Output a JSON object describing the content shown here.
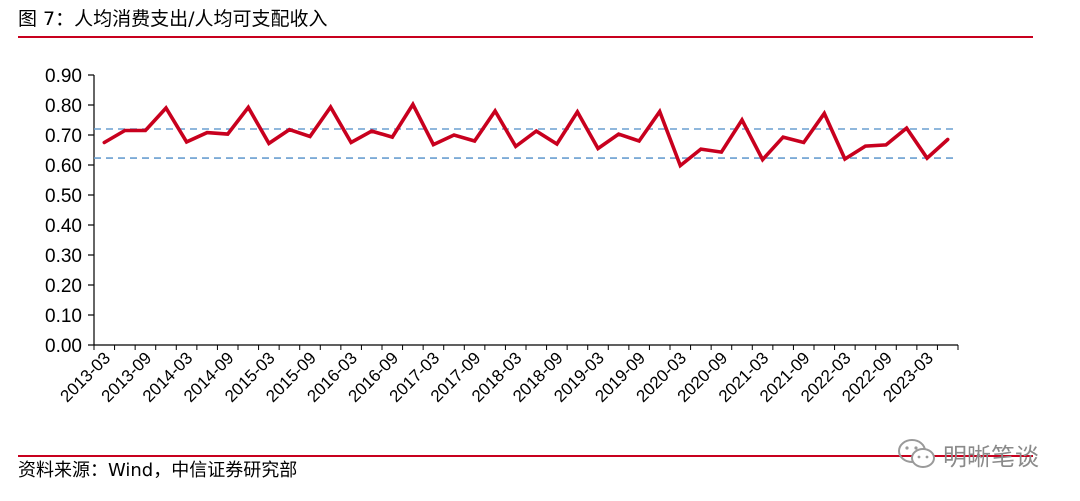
{
  "header": {
    "title": "图 7：人均消费支出/人均可支配收入"
  },
  "footer": {
    "source": "资料来源：Wind，中信证券研究部"
  },
  "watermark": {
    "text": "明晰笔谈",
    "icon": "wechat-icon"
  },
  "colors": {
    "line": "#c8001e",
    "reference": "#6a9fd0",
    "rule": "#c8001e"
  },
  "chart_data": {
    "type": "line",
    "title": "",
    "xlabel": "",
    "ylabel": "",
    "ylim": [
      0,
      0.9
    ],
    "yticks": [
      "0.00",
      "0.10",
      "0.20",
      "0.30",
      "0.40",
      "0.50",
      "0.60",
      "0.70",
      "0.80",
      "0.90"
    ],
    "xtick_labels": [
      "2013-03",
      "2013-09",
      "2014-03",
      "2014-09",
      "2015-03",
      "2015-09",
      "2016-03",
      "2016-09",
      "2017-03",
      "2017-09",
      "2018-03",
      "2018-09",
      "2019-03",
      "2019-09",
      "2020-03",
      "2020-09",
      "2021-03",
      "2021-09",
      "2022-03",
      "2022-09",
      "2023-03"
    ],
    "reference_lines": [
      0.72,
      0.623
    ],
    "grid": false,
    "series": [
      {
        "x": [
          "2013-03",
          "2013-06",
          "2013-09",
          "2013-12",
          "2014-03",
          "2014-06",
          "2014-09",
          "2014-12",
          "2015-03",
          "2015-06",
          "2015-09",
          "2015-12",
          "2016-03",
          "2016-06",
          "2016-09",
          "2016-12",
          "2017-03",
          "2017-06",
          "2017-09",
          "2017-12",
          "2018-03",
          "2018-06",
          "2018-09",
          "2018-12",
          "2019-03",
          "2019-06",
          "2019-09",
          "2019-12",
          "2020-03",
          "2020-06",
          "2020-09",
          "2020-12",
          "2021-03",
          "2021-06",
          "2021-09",
          "2021-12",
          "2022-03",
          "2022-06",
          "2022-09",
          "2022-12",
          "2023-03",
          "2023-06"
        ],
        "values": [
          0.675,
          0.715,
          0.715,
          0.79,
          0.677,
          0.708,
          0.703,
          0.792,
          0.672,
          0.718,
          0.695,
          0.793,
          0.675,
          0.713,
          0.693,
          0.802,
          0.668,
          0.7,
          0.68,
          0.78,
          0.662,
          0.713,
          0.67,
          0.777,
          0.655,
          0.703,
          0.68,
          0.778,
          0.598,
          0.653,
          0.643,
          0.75,
          0.618,
          0.693,
          0.675,
          0.772,
          0.62,
          0.663,
          0.667,
          0.723,
          0.623,
          0.685
        ]
      }
    ]
  }
}
